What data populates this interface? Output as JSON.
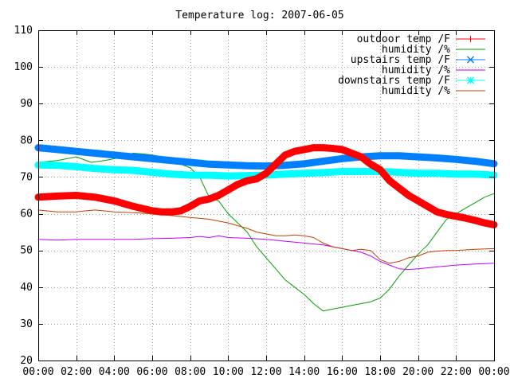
{
  "chart_data": {
    "type": "line",
    "title": "Temperature log: 2007-06-05",
    "xlabel": "",
    "ylabel": "",
    "xlim": [
      0,
      24
    ],
    "ylim": [
      20,
      110
    ],
    "x_ticks": [
      {
        "value": 0,
        "label": "00:00"
      },
      {
        "value": 2,
        "label": "02:00"
      },
      {
        "value": 4,
        "label": "04:00"
      },
      {
        "value": 6,
        "label": "06:00"
      },
      {
        "value": 8,
        "label": "08:00"
      },
      {
        "value": 10,
        "label": "10:00"
      },
      {
        "value": 12,
        "label": "12:00"
      },
      {
        "value": 14,
        "label": "14:00"
      },
      {
        "value": 16,
        "label": "16:00"
      },
      {
        "value": 18,
        "label": "18:00"
      },
      {
        "value": 20,
        "label": "20:00"
      },
      {
        "value": 22,
        "label": "22:00"
      },
      {
        "value": 24,
        "label": "00:00"
      }
    ],
    "y_ticks": [
      {
        "value": 20,
        "label": "20"
      },
      {
        "value": 30,
        "label": "30"
      },
      {
        "value": 40,
        "label": "40"
      },
      {
        "value": 50,
        "label": "50"
      },
      {
        "value": 60,
        "label": "60"
      },
      {
        "value": 70,
        "label": "70"
      },
      {
        "value": 80,
        "label": "80"
      },
      {
        "value": 90,
        "label": "90"
      },
      {
        "value": 100,
        "label": "100"
      },
      {
        "value": 110,
        "label": "110"
      }
    ],
    "grid": true,
    "legend_position": "top-right",
    "series": [
      {
        "name": "outdoor temp /F",
        "color": "#ff0000",
        "marker": "plus",
        "thick": true,
        "x": [
          0,
          1,
          2,
          3,
          4,
          5,
          6,
          6.5,
          7,
          7.5,
          8,
          8.5,
          9,
          9.5,
          10,
          10.5,
          11,
          11.5,
          12,
          12.5,
          13,
          13.5,
          14,
          14.5,
          15,
          15.5,
          16,
          16.5,
          17,
          17.5,
          18,
          18.5,
          19,
          19.5,
          20,
          20.5,
          21,
          21.5,
          22,
          22.5,
          23,
          23.5,
          24
        ],
        "y": [
          64.5,
          64.8,
          65,
          64.5,
          63.5,
          62,
          60.8,
          60.5,
          60.5,
          60.8,
          62,
          63.5,
          64,
          65,
          66.5,
          68,
          69,
          69.5,
          71,
          73.5,
          76,
          77,
          77.5,
          78,
          78,
          77.8,
          77.5,
          76.5,
          75.5,
          73.5,
          72,
          69,
          67,
          65,
          63.5,
          62,
          60.5,
          59.8,
          59.3,
          58.8,
          58.2,
          57.5,
          57
        ]
      },
      {
        "name": "humidity /%",
        "color": "#00a000",
        "marker": "none",
        "thick": false,
        "x": [
          0,
          1,
          2,
          2.8,
          3.5,
          4.5,
          5,
          5.5,
          6,
          6.5,
          7,
          7.5,
          8,
          8.5,
          9,
          9.5,
          10,
          10.5,
          11,
          11.5,
          12,
          12.5,
          13,
          13.5,
          14,
          14.5,
          15,
          15.5,
          16,
          16.5,
          17,
          17.5,
          18,
          18.5,
          19,
          19.5,
          20,
          20.5,
          21,
          21.5,
          22,
          22.5,
          23,
          23.5,
          24
        ],
        "y": [
          74,
          74.5,
          75.5,
          74,
          74.5,
          75.5,
          76.5,
          76.3,
          76,
          75.5,
          74,
          73.5,
          72.5,
          70,
          64.5,
          63.5,
          60,
          57.5,
          55,
          51,
          48,
          45,
          42,
          40,
          38,
          35.5,
          33.5,
          34,
          34.5,
          35,
          35.5,
          36,
          37,
          39.5,
          43,
          46,
          49,
          51.5,
          55,
          58.5,
          60,
          61.5,
          63,
          64.5,
          65.5
        ]
      },
      {
        "name": "upstairs temp /F",
        "color": "#0080ff",
        "marker": "cross",
        "thick": true,
        "x": [
          0,
          1,
          2,
          3,
          4,
          5,
          6,
          7,
          8,
          9,
          10,
          11,
          12,
          13,
          14,
          15,
          16,
          17,
          18,
          19,
          20,
          21,
          22,
          23,
          24
        ],
        "y": [
          78,
          77.5,
          77,
          76.5,
          76,
          75.5,
          75,
          74.5,
          74,
          73.5,
          73.3,
          73.1,
          73,
          73.2,
          73.6,
          74.3,
          75,
          75.5,
          75.8,
          75.8,
          75.5,
          75.2,
          74.8,
          74.3,
          73.6
        ]
      },
      {
        "name": "humidity /%",
        "color": "#c000ff",
        "marker": "none",
        "thick": false,
        "x": [
          0,
          1,
          2,
          3,
          4,
          5,
          6,
          7,
          8,
          8.5,
          9,
          9.5,
          10,
          11,
          12,
          13,
          14,
          15,
          16,
          17,
          17.5,
          18,
          18.5,
          19,
          19.5,
          20,
          21,
          22,
          23,
          24
        ],
        "y": [
          53,
          52.8,
          53,
          53,
          53,
          53,
          53.2,
          53.3,
          53.5,
          53.8,
          53.5,
          54,
          53.5,
          53.3,
          53,
          52.5,
          52,
          51.5,
          50.5,
          49.5,
          48.5,
          47,
          46,
          45,
          44.8,
          45,
          45.5,
          46,
          46.3,
          46.5
        ]
      },
      {
        "name": "downstairs temp /F",
        "color": "#00ffff",
        "marker": "star",
        "thick": true,
        "x": [
          0,
          1,
          2,
          3,
          4,
          5,
          6,
          7,
          8,
          9,
          10,
          11,
          12,
          13,
          14,
          15,
          16,
          17,
          18,
          19,
          20,
          21,
          22,
          23,
          24
        ],
        "y": [
          73.3,
          73.2,
          72.8,
          72.3,
          72,
          71.8,
          71.3,
          70.8,
          70.5,
          70.5,
          70.3,
          70.4,
          70.5,
          70.8,
          71,
          71.2,
          71.5,
          71.5,
          71.5,
          71.3,
          71,
          71,
          70.8,
          70.8,
          70.5
        ]
      },
      {
        "name": "humidity /%",
        "color": "#c04000",
        "marker": "none",
        "thick": false,
        "x": [
          0,
          1,
          2,
          2.5,
          3,
          4,
          5,
          6,
          7,
          8,
          9,
          10,
          11,
          11.5,
          12,
          12.5,
          13,
          13.5,
          14,
          14.5,
          15,
          15.5,
          16,
          16.5,
          17,
          17.5,
          18,
          18.5,
          19,
          19.5,
          20,
          20.5,
          21,
          21.5,
          22,
          23,
          24
        ],
        "y": [
          61,
          60.5,
          60.5,
          60.8,
          61,
          60.5,
          60.3,
          60,
          59.5,
          59,
          58.5,
          57.5,
          56,
          55,
          54.5,
          54,
          54,
          54.2,
          54,
          53.5,
          52,
          51,
          50.5,
          50,
          50.3,
          50,
          47.5,
          46.5,
          47,
          48,
          48.5,
          49.5,
          49.8,
          50,
          50,
          50.3,
          50.5
        ]
      }
    ]
  }
}
